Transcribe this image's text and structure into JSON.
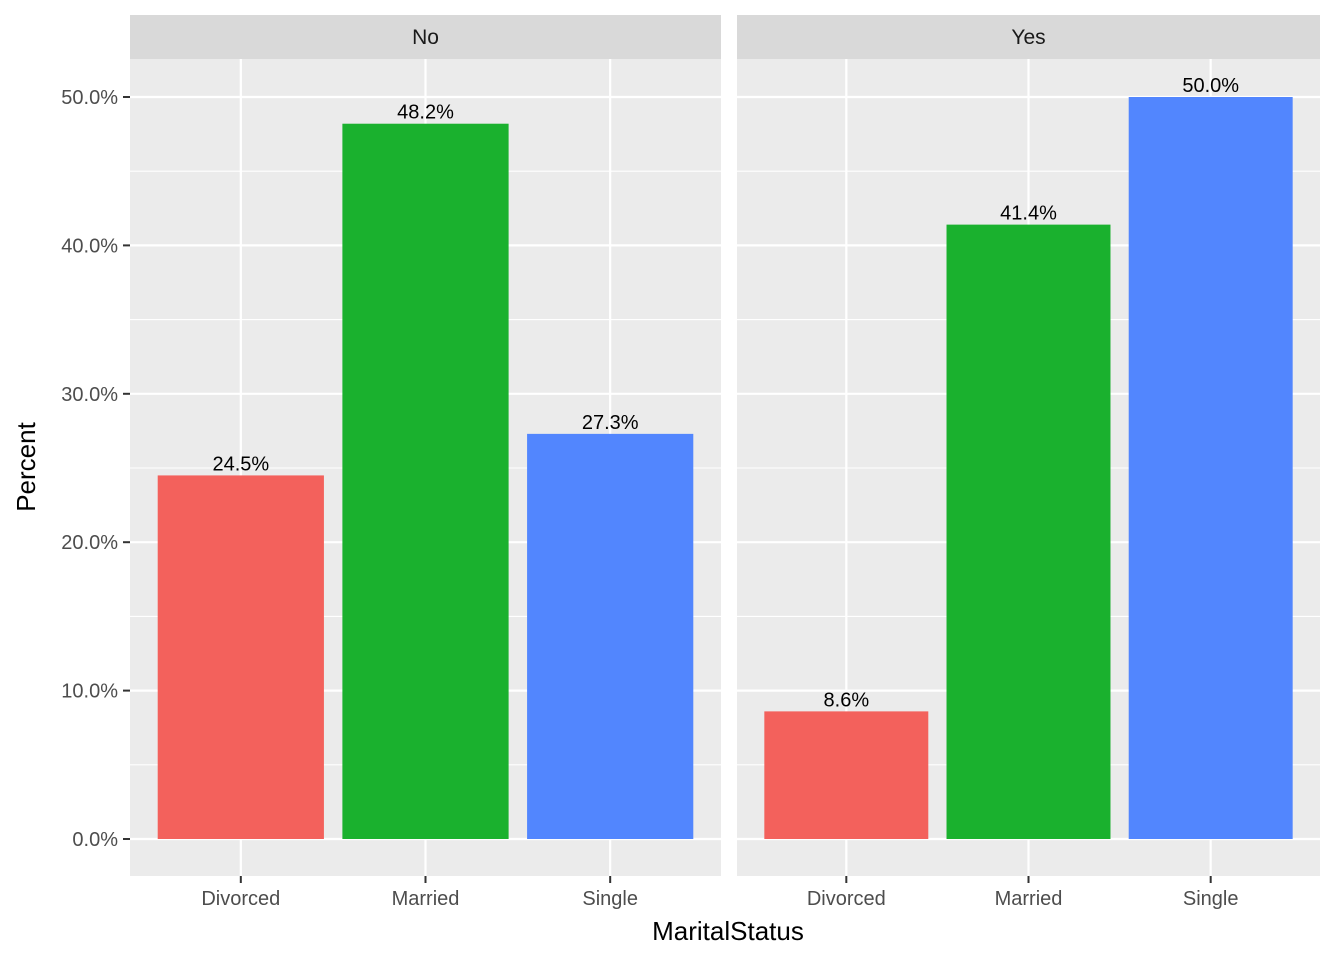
{
  "chart_data": {
    "type": "bar",
    "facet_variable": "",
    "xlabel": "MaritalStatus",
    "ylabel": "Percent",
    "ylim": [
      0,
      0.5
    ],
    "y_ticks": [
      0,
      0.1,
      0.2,
      0.3,
      0.4,
      0.5
    ],
    "y_tick_labels": [
      "0.0%",
      "10.0%",
      "20.0%",
      "30.0%",
      "40.0%",
      "50.0%"
    ],
    "categories": [
      "Divorced",
      "Married",
      "Single"
    ],
    "category_colors": {
      "Divorced": "#F3615C",
      "Married": "#1AB12E",
      "Single": "#5286FE"
    },
    "grid": true,
    "legend": "none",
    "panels": [
      {
        "title": "No",
        "values": [
          0.245,
          0.482,
          0.273
        ],
        "labels": [
          "24.5%",
          "48.2%",
          "27.3%"
        ]
      },
      {
        "title": "Yes",
        "values": [
          0.086,
          0.414,
          0.5
        ],
        "labels": [
          "8.6%",
          "41.4%",
          "50.0%"
        ]
      }
    ]
  }
}
